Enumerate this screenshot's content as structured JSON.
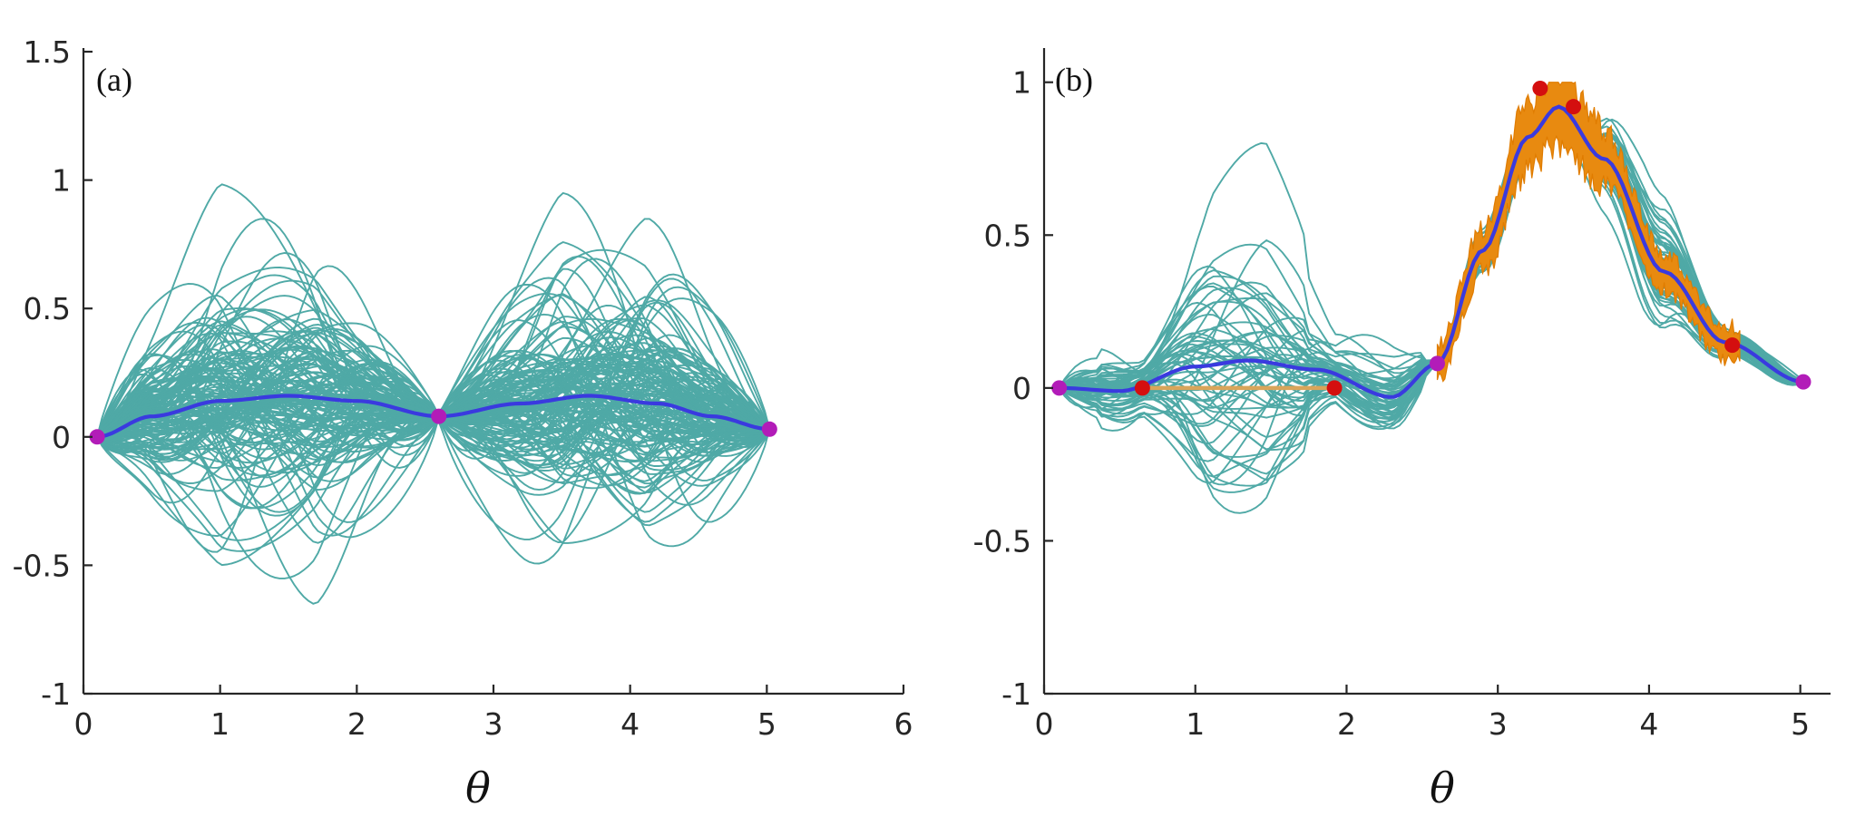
{
  "chart_data": [
    {
      "panel": "(a)",
      "type": "line",
      "xlabel": "θ",
      "ylabel": "",
      "xlim": [
        0,
        6
      ],
      "ylim": [
        -1,
        1.5
      ],
      "xticks": [
        "0",
        "1",
        "2",
        "3",
        "4",
        "5",
        "6"
      ],
      "yticks": [
        "-1",
        "-0.5",
        "0",
        "0.5",
        "1",
        "1.5"
      ],
      "colors": {
        "samples": "#4fa9a6",
        "mean": "#3a3adf",
        "observed_points": "#b21cb8"
      },
      "samples_count": 150,
      "sample_envelope": {
        "min": -0.74,
        "max": 1.11
      },
      "mean_curve": {
        "x": [
          0.1,
          0.5,
          1.0,
          1.5,
          2.0,
          2.6,
          3.2,
          3.7,
          4.2,
          4.6,
          5.02
        ],
        "y": [
          0.0,
          0.08,
          0.14,
          0.16,
          0.14,
          0.08,
          0.13,
          0.16,
          0.13,
          0.08,
          0.03
        ]
      },
      "observed_points": [
        {
          "x": 0.1,
          "y": 0.0
        },
        {
          "x": 2.6,
          "y": 0.08
        },
        {
          "x": 5.02,
          "y": 0.03
        }
      ]
    },
    {
      "panel": "(b)",
      "type": "line",
      "xlabel": "θ",
      "ylabel": "",
      "xlim": [
        0,
        5.2
      ],
      "ylim": [
        -1,
        1.1
      ],
      "xticks": [
        "0",
        "1",
        "2",
        "3",
        "4",
        "5"
      ],
      "yticks": [
        "-1",
        "-0.5",
        "0",
        "0.5",
        "1"
      ],
      "colors": {
        "samples": "#4fa9a6",
        "mean": "#3a3adf",
        "orange_band": "#e88a10",
        "observed_points": "#b21cb8",
        "new_points": "#d40f0f"
      },
      "samples_count": 60,
      "sample_envelope": {
        "min": -0.65,
        "max": 1.1
      },
      "mean_curve": {
        "x": [
          0.1,
          0.5,
          1.0,
          1.35,
          1.8,
          2.3,
          2.6,
          2.9,
          3.2,
          3.4,
          3.7,
          4.1,
          4.5,
          5.02
        ],
        "y": [
          0.0,
          -0.01,
          0.07,
          0.09,
          0.06,
          -0.03,
          0.08,
          0.45,
          0.82,
          0.92,
          0.75,
          0.38,
          0.15,
          0.02
        ]
      },
      "observed_points": [
        {
          "x": 0.1,
          "y": 0.0
        },
        {
          "x": 2.6,
          "y": 0.08
        },
        {
          "x": 5.02,
          "y": 0.02
        }
      ],
      "new_points": [
        {
          "x": 0.65,
          "y": 0.0
        },
        {
          "x": 1.92,
          "y": 0.0
        },
        {
          "x": 3.28,
          "y": 0.98
        },
        {
          "x": 3.5,
          "y": 0.92
        },
        {
          "x": 4.55,
          "y": 0.14
        }
      ]
    }
  ]
}
